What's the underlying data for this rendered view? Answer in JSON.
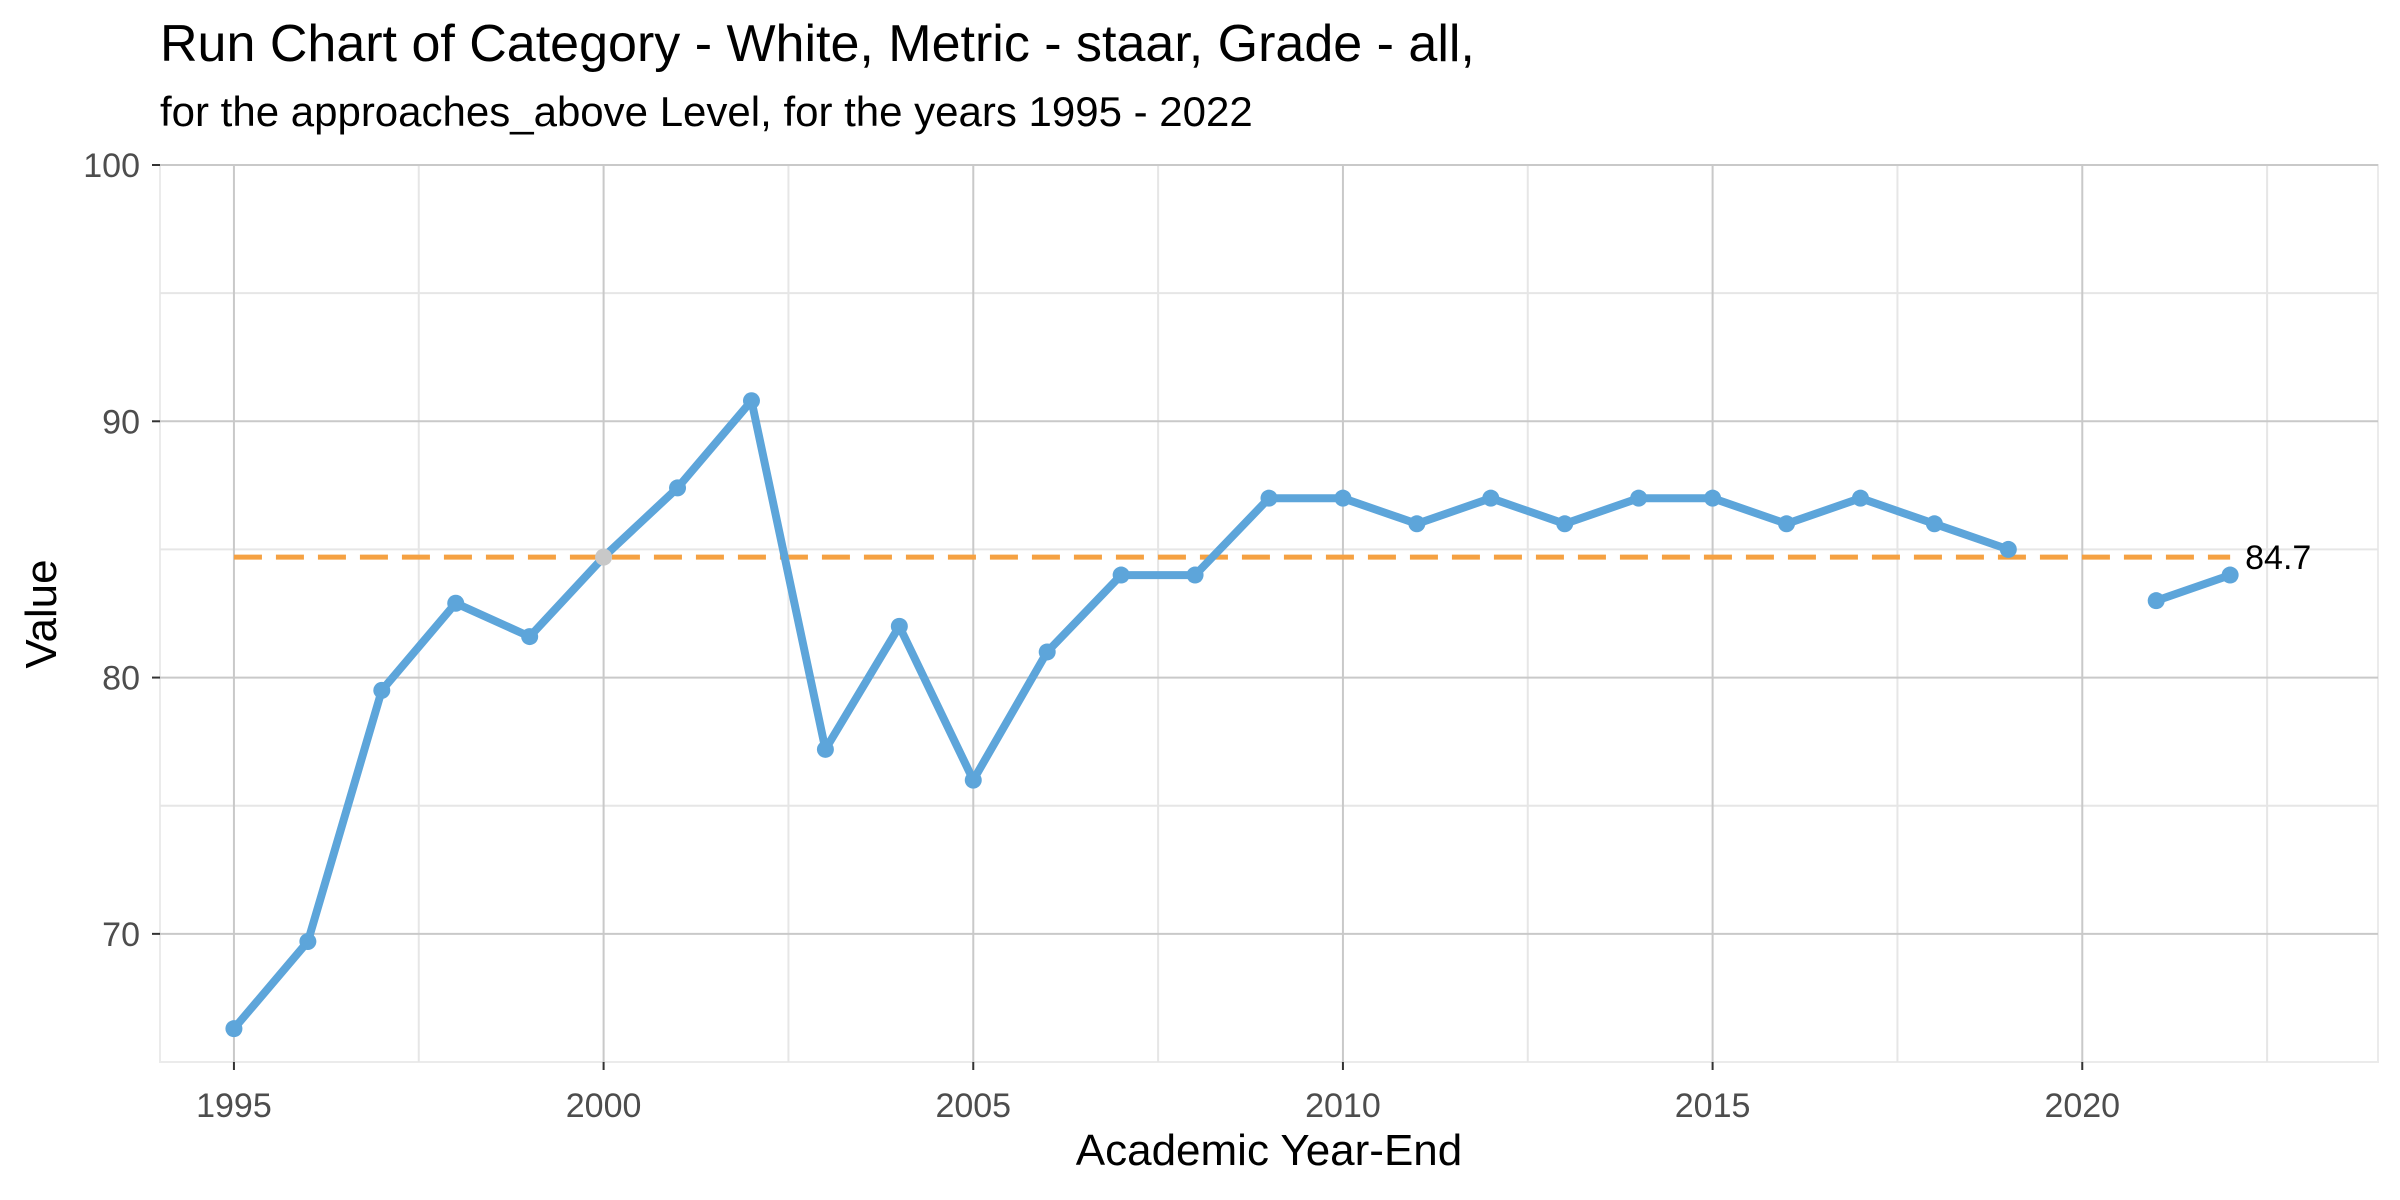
{
  "chart_data": {
    "type": "line",
    "title": "Run Chart of Category - White, Metric - staar, Grade - all,",
    "subtitle": "for the approaches_above Level, for the years 1995 - 2022",
    "xlabel": "Academic Year-End",
    "ylabel": "Value",
    "xlim": [
      1994,
      2024
    ],
    "ylim": [
      65,
      100
    ],
    "x_ticks": [
      1995,
      2000,
      2005,
      2010,
      2015,
      2020
    ],
    "x_tick_labels": [
      "1995",
      "2000",
      "2005",
      "2010",
      "2015",
      "2020"
    ],
    "y_ticks": [
      70,
      80,
      90,
      100
    ],
    "y_tick_labels": [
      "70",
      "80",
      "90",
      "100"
    ],
    "grid": true,
    "series": [
      {
        "color": "#5DA5DA",
        "segments": [
          {
            "x": [
              1995,
              1996,
              1997,
              1998,
              1999,
              2000,
              2001,
              2002,
              2003,
              2004,
              2005,
              2006,
              2007,
              2008,
              2009,
              2010,
              2011,
              2012,
              2013,
              2014,
              2015,
              2016,
              2017,
              2018,
              2019
            ],
            "y": [
              66.3,
              69.7,
              79.5,
              82.9,
              81.6,
              84.7,
              87.4,
              90.8,
              77.2,
              82.0,
              76.0,
              81.0,
              84.0,
              84.0,
              87.0,
              87.0,
              86.0,
              87.0,
              86.0,
              87.0,
              87.0,
              86.0,
              87.0,
              86.0,
              85.0
            ]
          },
          {
            "x": [
              2021,
              2022
            ],
            "y": [
              83.0,
              84.0
            ]
          }
        ],
        "highlighted_points": [
          {
            "x": 2000,
            "y": 84.7,
            "color": "#C8C8C8"
          }
        ]
      }
    ],
    "reference_line": {
      "value": 84.7,
      "x_range": [
        1995,
        2022
      ],
      "color": "#F5A142",
      "style": "dashed",
      "label": "84.7"
    },
    "colors": {
      "line": "#5DA5DA",
      "reference": "#F5A142",
      "highlight_point": "#C8C8C8",
      "grid_major": "#C9C9C9",
      "grid_minor": "#E6E6E6"
    }
  }
}
